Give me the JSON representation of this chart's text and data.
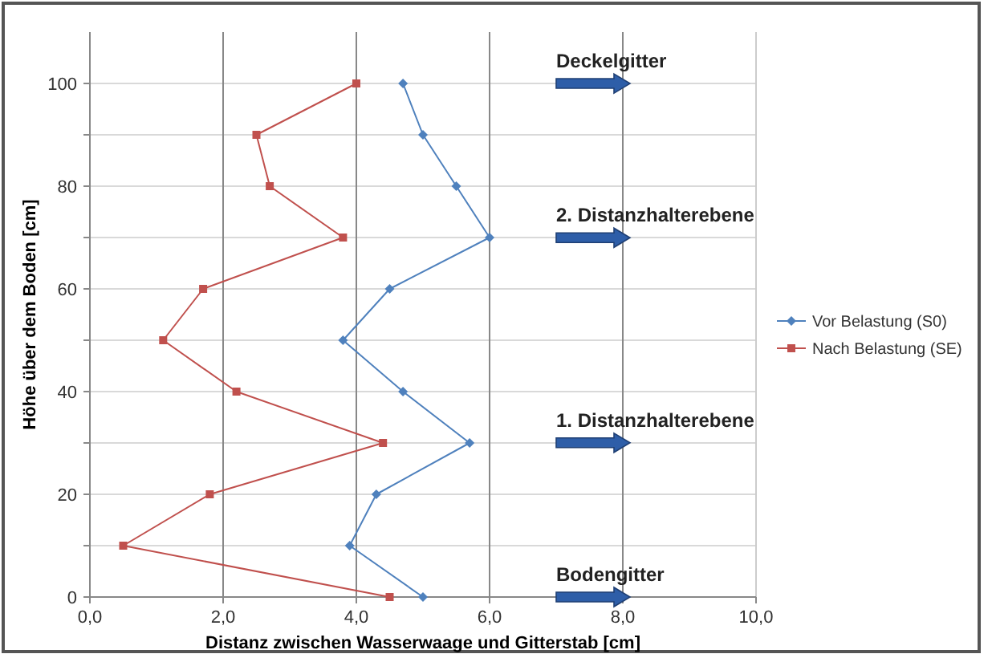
{
  "chart_data": {
    "type": "line",
    "xlabel": "Distanz zwischen Wasserwaage und Gitterstab [cm]",
    "ylabel": "Höhe über dem Boden [cm]",
    "series": [
      {
        "name": "Vor Belastung (S0)",
        "color": "#4f81bd",
        "marker": "diamond",
        "x": [
          5.0,
          3.9,
          4.3,
          5.7,
          4.7,
          3.8,
          4.5,
          6.0,
          5.5,
          5.0,
          4.7
        ],
        "values": [
          0,
          10,
          20,
          30,
          40,
          50,
          60,
          70,
          80,
          90,
          100
        ]
      },
      {
        "name": "Nach Belastung (SE)",
        "color": "#c0504d",
        "marker": "square",
        "x": [
          4.5,
          0.5,
          1.8,
          4.4,
          2.2,
          1.1,
          1.7,
          3.8,
          2.7,
          2.5,
          4.0
        ],
        "values": [
          0,
          10,
          20,
          30,
          40,
          50,
          60,
          70,
          80,
          90,
          100
        ]
      }
    ],
    "xlim": [
      0,
      10
    ],
    "xticks": [
      {
        "value": 0,
        "label": "0,0"
      },
      {
        "value": 2,
        "label": "2,0"
      },
      {
        "value": 4,
        "label": "4,0"
      },
      {
        "value": 6,
        "label": "6,0"
      },
      {
        "value": 8,
        "label": "8,0"
      },
      {
        "value": 10,
        "label": "10,0"
      }
    ],
    "ylim": [
      0,
      110
    ],
    "yticks": [
      0,
      {
        "value": 10,
        "label": null
      },
      20,
      {
        "value": 30,
        "label": null
      },
      40,
      {
        "value": 50,
        "label": null
      },
      60,
      {
        "value": 70,
        "label": null
      },
      80,
      {
        "value": 90,
        "label": null
      },
      100
    ],
    "grid": true,
    "legend": "right",
    "annotations": [
      "Deckelgitter",
      "2. Distanzhalterebene",
      "1. Distanzhalterebene",
      "Bodengitter"
    ]
  }
}
